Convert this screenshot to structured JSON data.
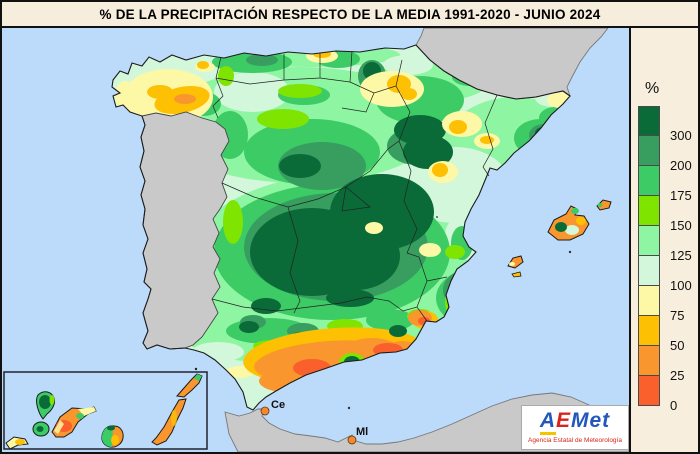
{
  "title": "% DE LA PRECIPITACIÓN RESPECTO DE LA MEDIA 1991-2020 - JUNIO 2024",
  "legend": {
    "unit": "%",
    "stops": [
      {
        "label": "300",
        "color": "#0a6b38"
      },
      {
        "label": "200",
        "color": "#379e60"
      },
      {
        "label": "175",
        "color": "#3dcb66"
      },
      {
        "label": "150",
        "color": "#7ee400"
      },
      {
        "label": "125",
        "color": "#8ef5a2"
      },
      {
        "label": "100",
        "color": "#d2f7da"
      },
      {
        "label": "75",
        "color": "#fdf8a5"
      },
      {
        "label": "50",
        "color": "#fdc002"
      },
      {
        "label": "25",
        "color": "#f9962e"
      },
      {
        "label": "0",
        "color": "#f9602c"
      }
    ]
  },
  "map": {
    "labels": {
      "ceuta": "Ce",
      "melilla": "Ml"
    },
    "colors": {
      "sea": "#bcdafa",
      "no_data_land": "#c9c9c9",
      "panel_bg": "#f8eedd",
      "title_bg": "#f6eddc"
    }
  },
  "logo": {
    "part1": "A",
    "part2": "E",
    "part3": "Met",
    "subtitle": "Agencia Estatal de Meteorología"
  }
}
